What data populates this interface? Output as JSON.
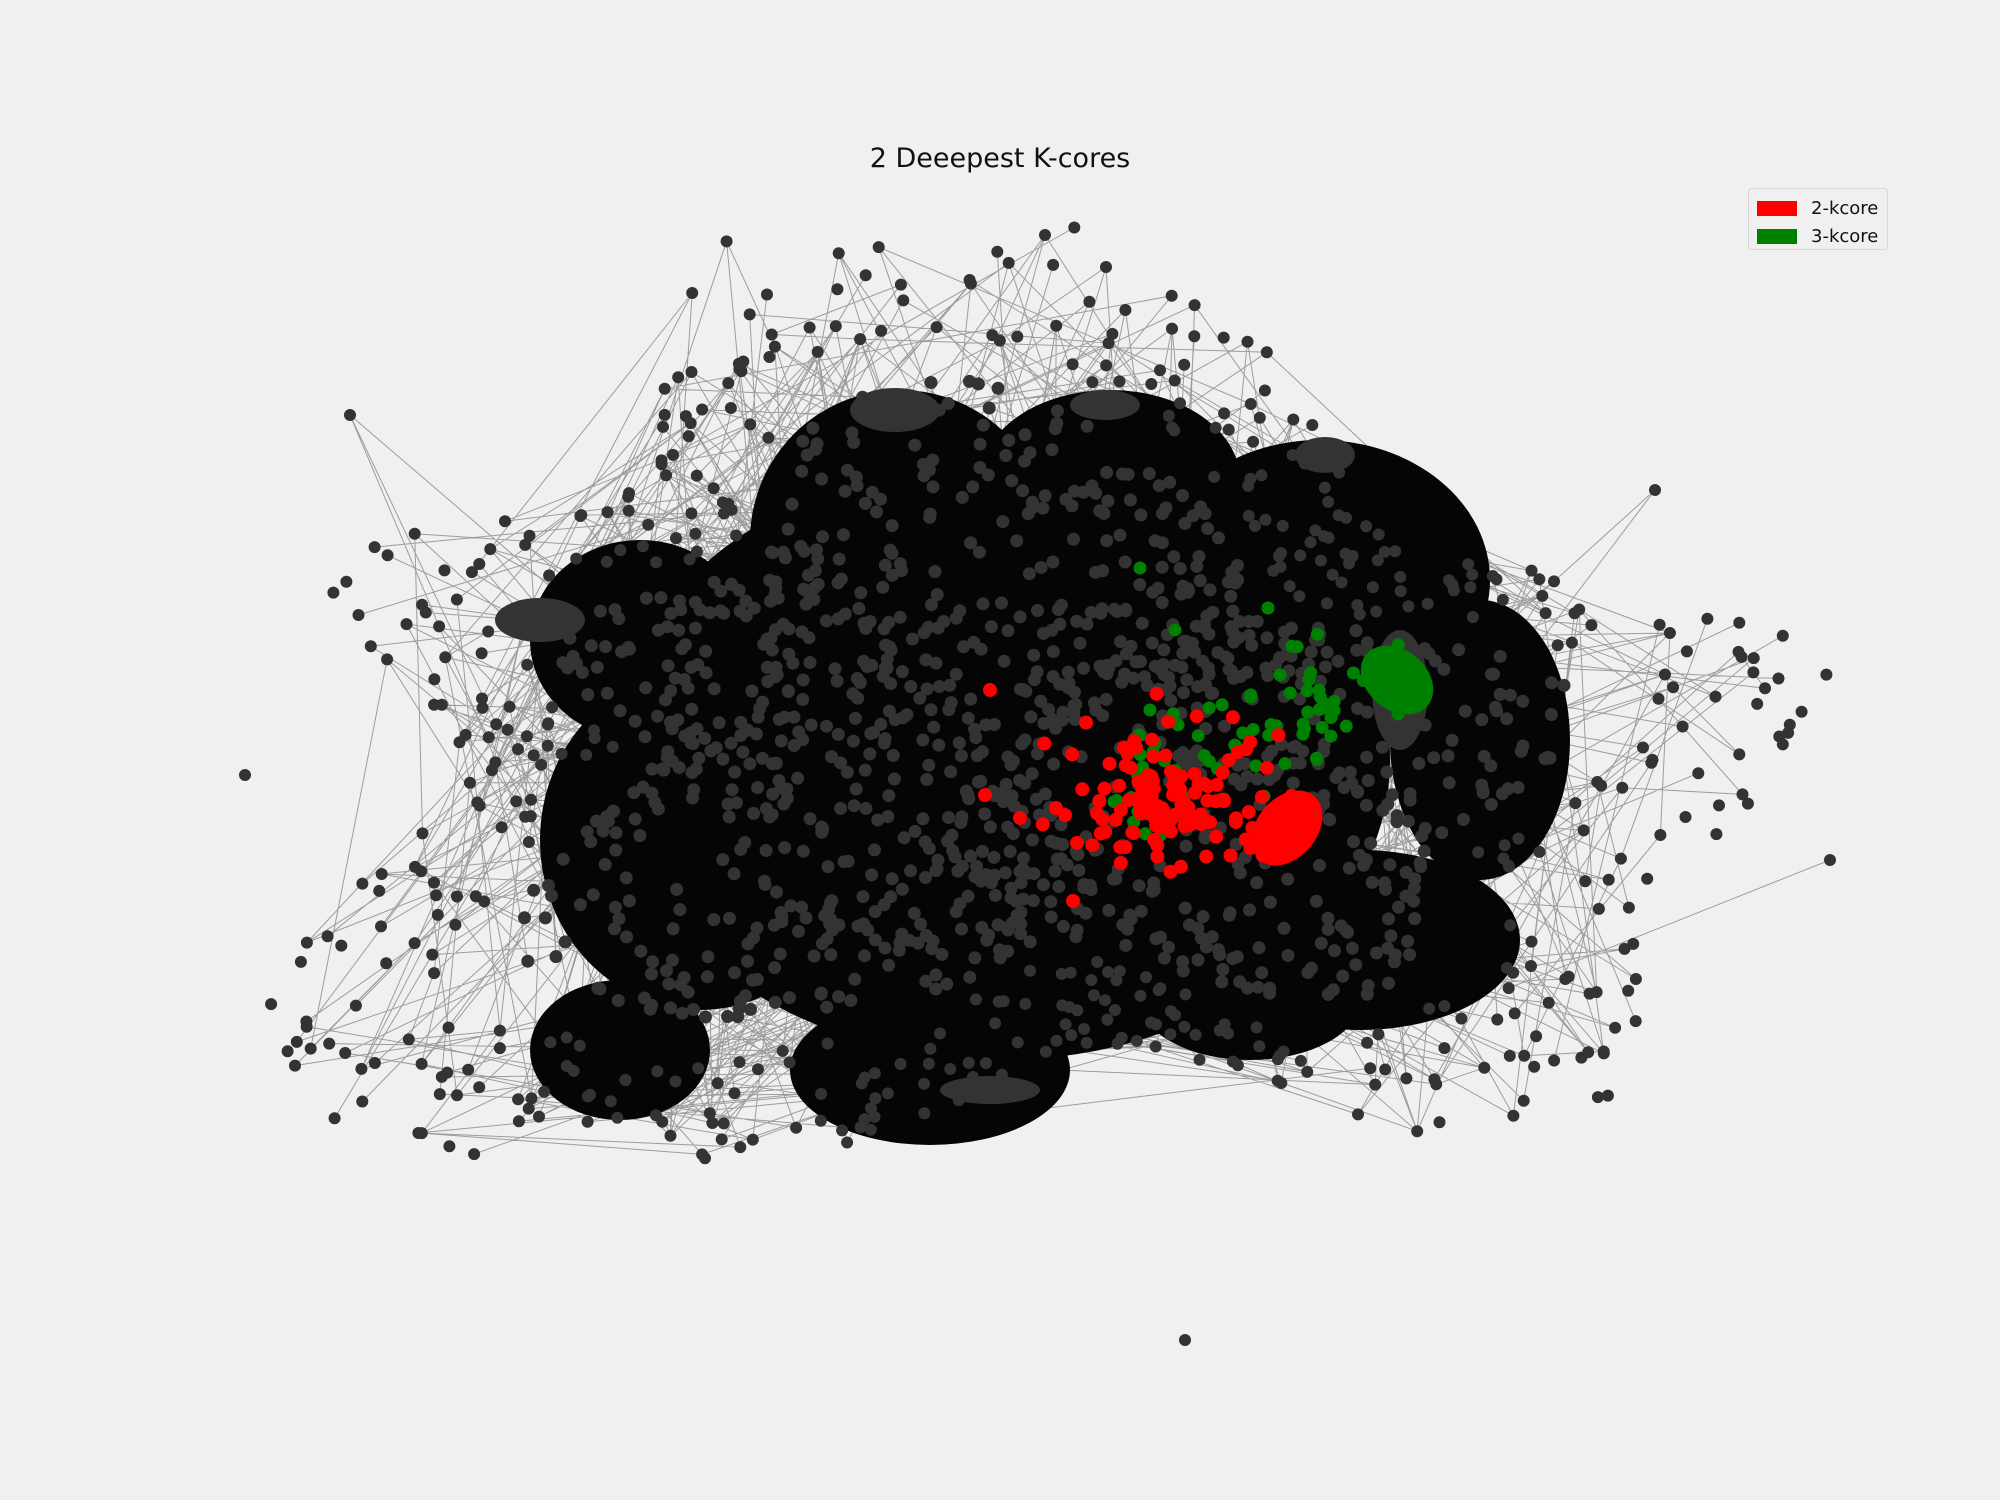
{
  "title": "2 Deeepest K-cores",
  "legend": {
    "placement": "upper right",
    "items": [
      {
        "label": "2-kcore",
        "color": "#ff0000"
      },
      {
        "label": "3-kcore",
        "color": "#008000"
      }
    ]
  },
  "colors": {
    "background": "#f0f0f0",
    "node": "#333333",
    "edge": "#000000",
    "kcore_2": "#ff0000",
    "kcore_3": "#008000"
  },
  "chart_data": {
    "type": "network",
    "title": "2 Deeepest K-cores",
    "axes_visible": false,
    "legend": [
      "2-kcore",
      "3-kcore"
    ],
    "highlighted_cores": [
      {
        "name": "2-kcore",
        "color": "#ff0000"
      },
      {
        "name": "3-kcore",
        "color": "#008000"
      }
    ]
  }
}
